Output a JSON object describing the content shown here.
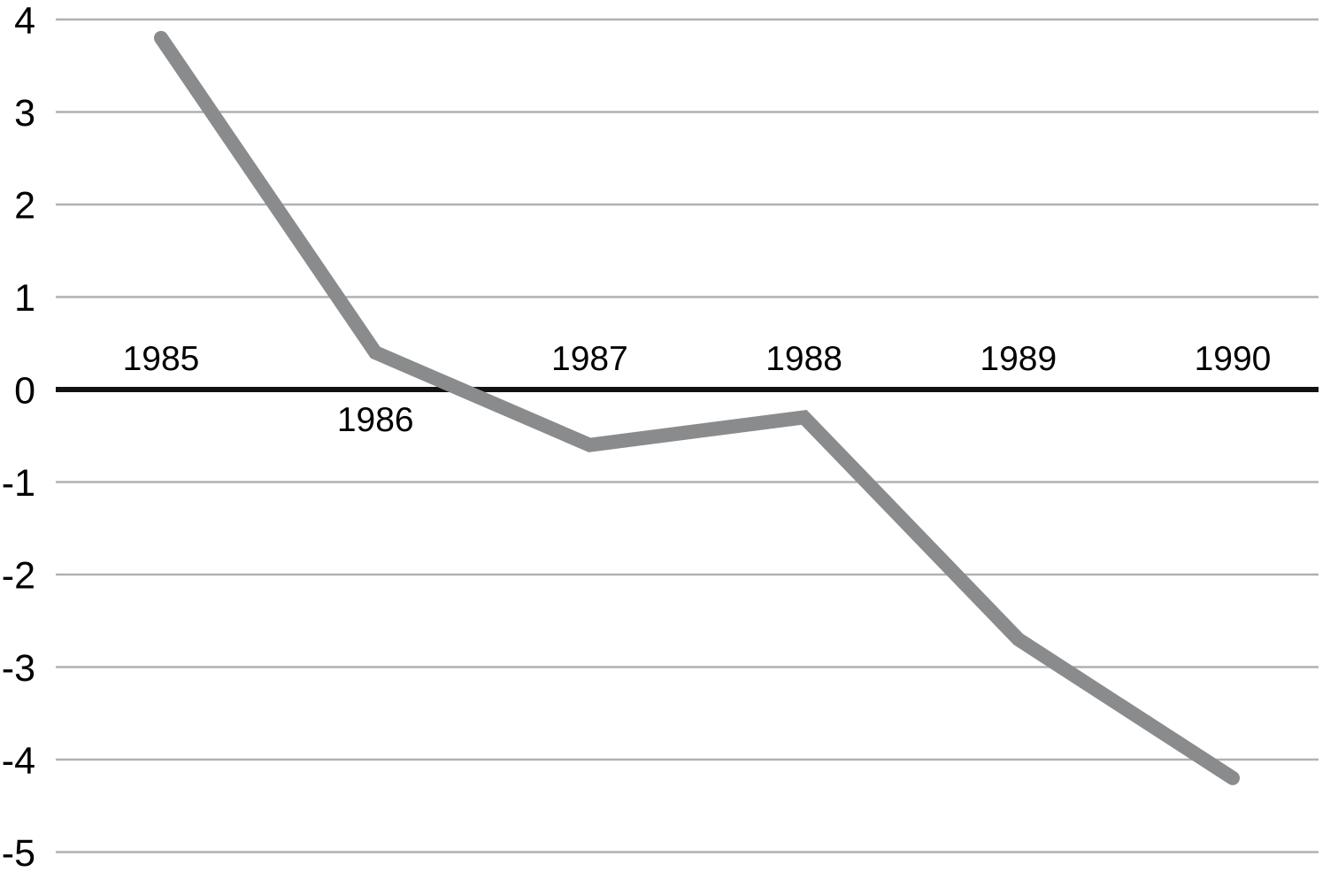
{
  "chart_data": {
    "type": "line",
    "categories": [
      "1985",
      "1986",
      "1987",
      "1988",
      "1989",
      "1990"
    ],
    "values": [
      3.8,
      0.4,
      -0.6,
      -0.3,
      -2.7,
      -4.2
    ],
    "y_ticks": [
      "4",
      "3",
      "2",
      "1",
      "0",
      "-1",
      "-2",
      "-3",
      "-4",
      "-5"
    ],
    "y_tick_values": [
      4,
      3,
      2,
      1,
      0,
      -1,
      -2,
      -3,
      -4,
      -5
    ],
    "ylim": [
      -5,
      4
    ],
    "title": "",
    "xlabel": "",
    "ylabel": "",
    "grid": true,
    "legend_position": "none",
    "category_label_side": [
      "above",
      "below",
      "above",
      "above",
      "above",
      "above"
    ],
    "colors": {
      "line": "#8a8b8d",
      "grid": "#b1b1b3",
      "zero_axis": "#121212",
      "text": "#000000",
      "background": "#ffffff"
    }
  }
}
